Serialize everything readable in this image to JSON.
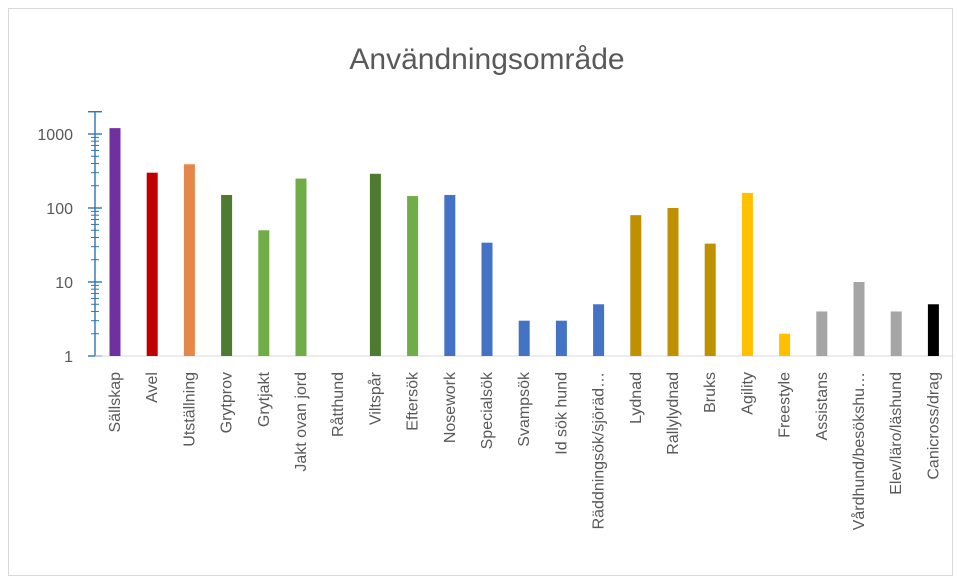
{
  "chart_data": {
    "type": "bar",
    "title": "Användningsområde",
    "xlabel": "",
    "ylabel": "",
    "yscale": "log",
    "ylim": [
      1,
      2000
    ],
    "yticks": [
      1,
      10,
      100,
      1000
    ],
    "grid": false,
    "legend": "none",
    "categories": [
      "Sällskap",
      "Avel",
      "Utställning",
      "Grytprov",
      "Grytjakt",
      "Jakt ovan jord",
      "Råtthund",
      "Viltspår",
      "Eftersök",
      "Nosework",
      "Specialsök",
      "Svampsök",
      "Id sök hund",
      "Räddningsök/sjöräd…",
      "Lydnad",
      "Rallylydnad",
      "Bruks",
      "Agility",
      "Freestyle",
      "Assistans",
      "Vårdhund/besökshu…",
      "Elev/läro/läshund",
      "Canicross/drag"
    ],
    "values": [
      1200,
      300,
      390,
      150,
      50,
      250,
      1,
      290,
      145,
      150,
      34,
      3,
      3,
      5,
      80,
      100,
      33,
      160,
      2,
      4,
      10,
      4,
      5
    ],
    "colors": [
      "#7030a0",
      "#c00000",
      "#e6874a",
      "#4e7a32",
      "#70ad47",
      "#70ad47",
      "#70ad47",
      "#4e7a32",
      "#70ad47",
      "#4472c4",
      "#4472c4",
      "#4472c4",
      "#4472c4",
      "#4472c4",
      "#bf9000",
      "#bf9000",
      "#bf9000",
      "#ffc000",
      "#ffc000",
      "#a5a5a5",
      "#a5a5a5",
      "#a5a5a5",
      "#000000"
    ],
    "axis_color": "#2e75b6"
  }
}
